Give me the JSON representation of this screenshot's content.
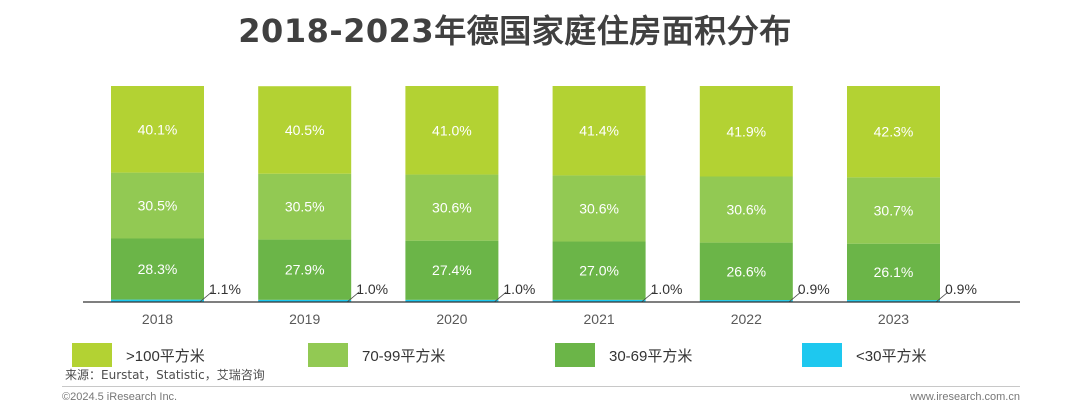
{
  "chart_data": {
    "type": "bar",
    "stacked": true,
    "title": "2018-2023年德国家庭住房面积分布",
    "categories": [
      "2018",
      "2019",
      "2020",
      "2021",
      "2022",
      "2023"
    ],
    "series": [
      {
        "name": "<30平方米",
        "color": "#1ec8ef",
        "values": [
          1.1,
          1.0,
          1.0,
          1.0,
          0.9,
          0.9
        ]
      },
      {
        "name": "30-69平方米",
        "color": "#6bb548",
        "values": [
          28.3,
          27.9,
          27.4,
          27.0,
          26.6,
          26.1
        ]
      },
      {
        "name": "70-99平方米",
        "color": "#92c953",
        "values": [
          30.5,
          30.5,
          30.6,
          30.6,
          30.6,
          30.7
        ]
      },
      {
        "name": ">100平方米",
        "color": "#b3d233",
        "values": [
          40.1,
          40.5,
          41.0,
          41.4,
          41.9,
          42.3
        ]
      }
    ],
    "value_unit": "%",
    "ylim": [
      0,
      100
    ],
    "legend_order": [
      ">100平方米",
      "70-99平方米",
      "30-69平方米",
      "<30平方米"
    ],
    "legend_position": "bottom",
    "grid": false
  },
  "source": "来源：Eurstat，Statistic，艾瑞咨询",
  "copyright": "©2024.5 iResearch Inc.",
  "website": "www.iresearch.com.cn"
}
